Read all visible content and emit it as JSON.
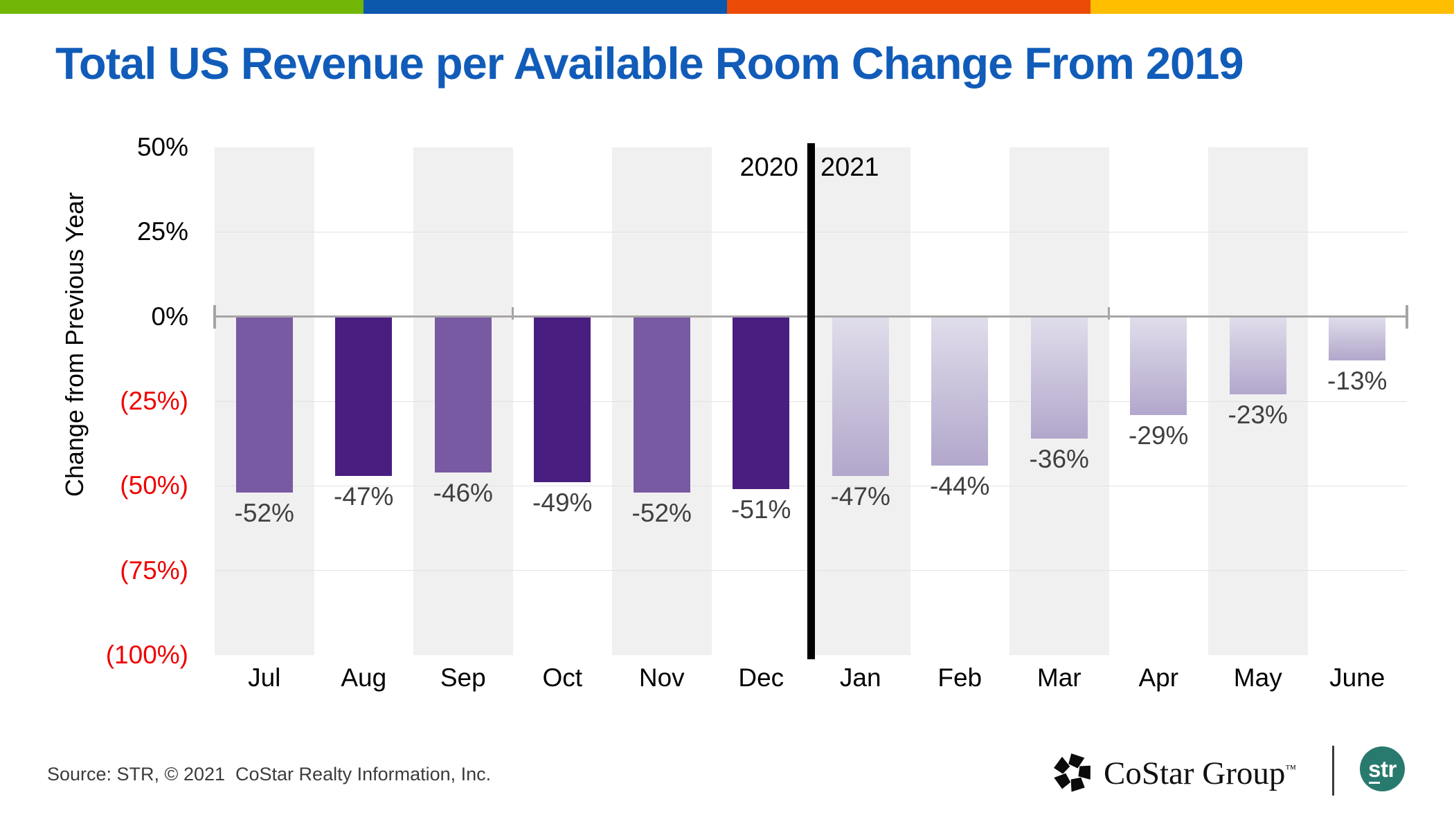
{
  "top_bar": {
    "segment_colors": [
      "#72B605",
      "#0B58AD",
      "#EB4B07",
      "#FFBE00"
    ]
  },
  "title": "Total US Revenue per Available Room Change From 2019",
  "chart_data": {
    "type": "bar",
    "title": "Total US Revenue per Available Room Change From 2019",
    "ylabel": "Change from Previous Year",
    "xlabel": "",
    "ylim": [
      -100,
      50
    ],
    "grid": true,
    "legend": "none",
    "background_stripes": "alternating-gray-white",
    "categories": [
      "Jul",
      "Aug",
      "Sep",
      "Oct",
      "Nov",
      "Dec",
      "Jan",
      "Feb",
      "Mar",
      "Apr",
      "May",
      "June"
    ],
    "values": [
      -52,
      -47,
      -46,
      -49,
      -52,
      -51,
      -47,
      -44,
      -36,
      -29,
      -23,
      -13
    ],
    "data_labels": [
      "-52%",
      "-47%",
      "-46%",
      "-49%",
      "-52%",
      "-51%",
      "-47%",
      "-44%",
      "-36%",
      "-29%",
      "-23%",
      "-13%"
    ],
    "y_ticks": [
      {
        "value": 50,
        "label": "50%"
      },
      {
        "value": 25,
        "label": "25%"
      },
      {
        "value": 0,
        "label": "0%"
      },
      {
        "value": -25,
        "label": "(25%)"
      },
      {
        "value": -50,
        "label": "(50%)"
      },
      {
        "value": -75,
        "label": "(75%)"
      },
      {
        "value": -100,
        "label": "(100%)"
      }
    ],
    "gridline_values": [
      25,
      -25,
      -50,
      -75
    ],
    "axis_tick_columns": [
      0,
      3,
      9,
      12
    ],
    "divider_after_column": 6,
    "year_groups": [
      {
        "label": "2020",
        "from": "Jul",
        "to": "Dec"
      },
      {
        "label": "2021",
        "from": "Jan",
        "to": "June"
      }
    ],
    "bar_fill": [
      "medium",
      "dark",
      "medium",
      "dark",
      "medium",
      "dark",
      "gradient",
      "gradient",
      "gradient",
      "gradient",
      "gradient",
      "gradient"
    ]
  },
  "colors": {
    "title_blue": "#115CB9",
    "bar_medium_purple": "#785AA3",
    "bar_dark_purple": "#481E80",
    "bar_gradient_top": "#E0DDEB",
    "bar_gradient_bottom": "#B2A7CB",
    "negative_tick_red": "#EE0000",
    "axis_gray": "#A7A4A5",
    "gridline_gray": "#E3E2E3",
    "stripe_gray": "#F1F0F1",
    "value_label_gray": "#3F3F3F",
    "divider_black": "#000000",
    "str_teal": "#287A6E"
  },
  "footer": {
    "source": "Source: STR, © 2021  CoStar Realty Information, Inc.",
    "costar_group": "CoStar Group",
    "trademark": "™",
    "str_label": "str"
  }
}
